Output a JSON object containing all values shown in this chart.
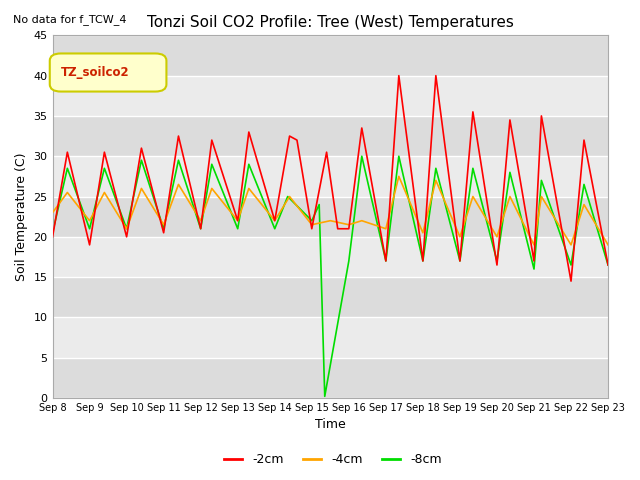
{
  "title": "Tonzi Soil CO2 Profile: Tree (West) Temperatures",
  "note": "No data for f_TCW_4",
  "xlabel": "Time",
  "ylabel": "Soil Temperature (C)",
  "ylim": [
    0,
    45
  ],
  "legend_label": "TZ_soilco2",
  "legend_bg": "#ffffcc",
  "legend_border": "#cccc00",
  "bg_color": "#ffffff",
  "plot_bg_light": "#ebebeb",
  "plot_bg_dark": "#dcdcdc",
  "grid_color": "#ffffff",
  "series_2cm": {
    "color": "#ff0000",
    "label": "-2cm"
  },
  "series_4cm": {
    "color": "#ffa500",
    "label": "-4cm"
  },
  "series_8cm": {
    "color": "#00dd00",
    "label": "-8cm"
  },
  "x_tick_labels": [
    "Sep 8",
    "Sep 9",
    "Sep 10",
    "Sep 11",
    "Sep 12",
    "Sep 13",
    "Sep 14",
    "Sep 15",
    "Sep 16",
    "Sep 17",
    "Sep 18",
    "Sep 19",
    "Sep 20",
    "Sep 21",
    "Sep 22",
    "Sep 23"
  ],
  "y_ticks": [
    0,
    5,
    10,
    15,
    20,
    25,
    30,
    35,
    40,
    45
  ],
  "red_x": [
    0,
    0.4,
    1,
    1.4,
    2,
    2.4,
    3,
    3.4,
    4,
    4.3,
    5,
    5.3,
    6,
    6.4,
    6.6,
    7,
    7.4,
    7.7,
    8,
    8.35,
    9,
    9.35,
    10,
    10.35,
    11,
    11.35,
    12,
    12.35,
    13,
    13.2,
    14,
    14.35,
    15
  ],
  "red_y": [
    20,
    30.5,
    19,
    30.5,
    20,
    31,
    20.5,
    32.5,
    21,
    32,
    22,
    33,
    22,
    32.5,
    32,
    21,
    30.5,
    21,
    21,
    33.5,
    17,
    40,
    17,
    40,
    17,
    35.5,
    16.5,
    34.5,
    17,
    35,
    14.5,
    32,
    16.5
  ],
  "orange_x": [
    0,
    0.4,
    1,
    1.4,
    2,
    2.4,
    3,
    3.4,
    4,
    4.3,
    5,
    5.3,
    6,
    6.4,
    7,
    7.5,
    8,
    8.35,
    9,
    9.35,
    10,
    10.35,
    11,
    11.35,
    12,
    12.35,
    13,
    13.2,
    14,
    14.35,
    15
  ],
  "orange_y": [
    23,
    25.5,
    22,
    25.5,
    21,
    26,
    21.5,
    26.5,
    22,
    26,
    22,
    26,
    22,
    25,
    21.5,
    22,
    21.5,
    22,
    21,
    27.5,
    20.5,
    27,
    20,
    25,
    20,
    25,
    19,
    25,
    19,
    24,
    19
  ],
  "green_x": [
    0,
    0.4,
    1,
    1.4,
    2,
    2.4,
    3,
    3.4,
    4,
    4.3,
    5,
    5.3,
    6,
    6.35,
    7,
    7.2,
    7.35,
    8,
    8.35,
    9,
    9.35,
    10,
    10.35,
    11,
    11.35,
    12,
    12.35,
    13,
    13.2,
    14,
    14.35,
    15
  ],
  "green_y": [
    20.5,
    28.5,
    21,
    28.5,
    21,
    29.5,
    21,
    29.5,
    21,
    29,
    21,
    29,
    21,
    25,
    22,
    24,
    0.2,
    17,
    30,
    17,
    30,
    17,
    28.5,
    17,
    28.5,
    17,
    28,
    16,
    27,
    16.5,
    26.5,
    16.5
  ]
}
